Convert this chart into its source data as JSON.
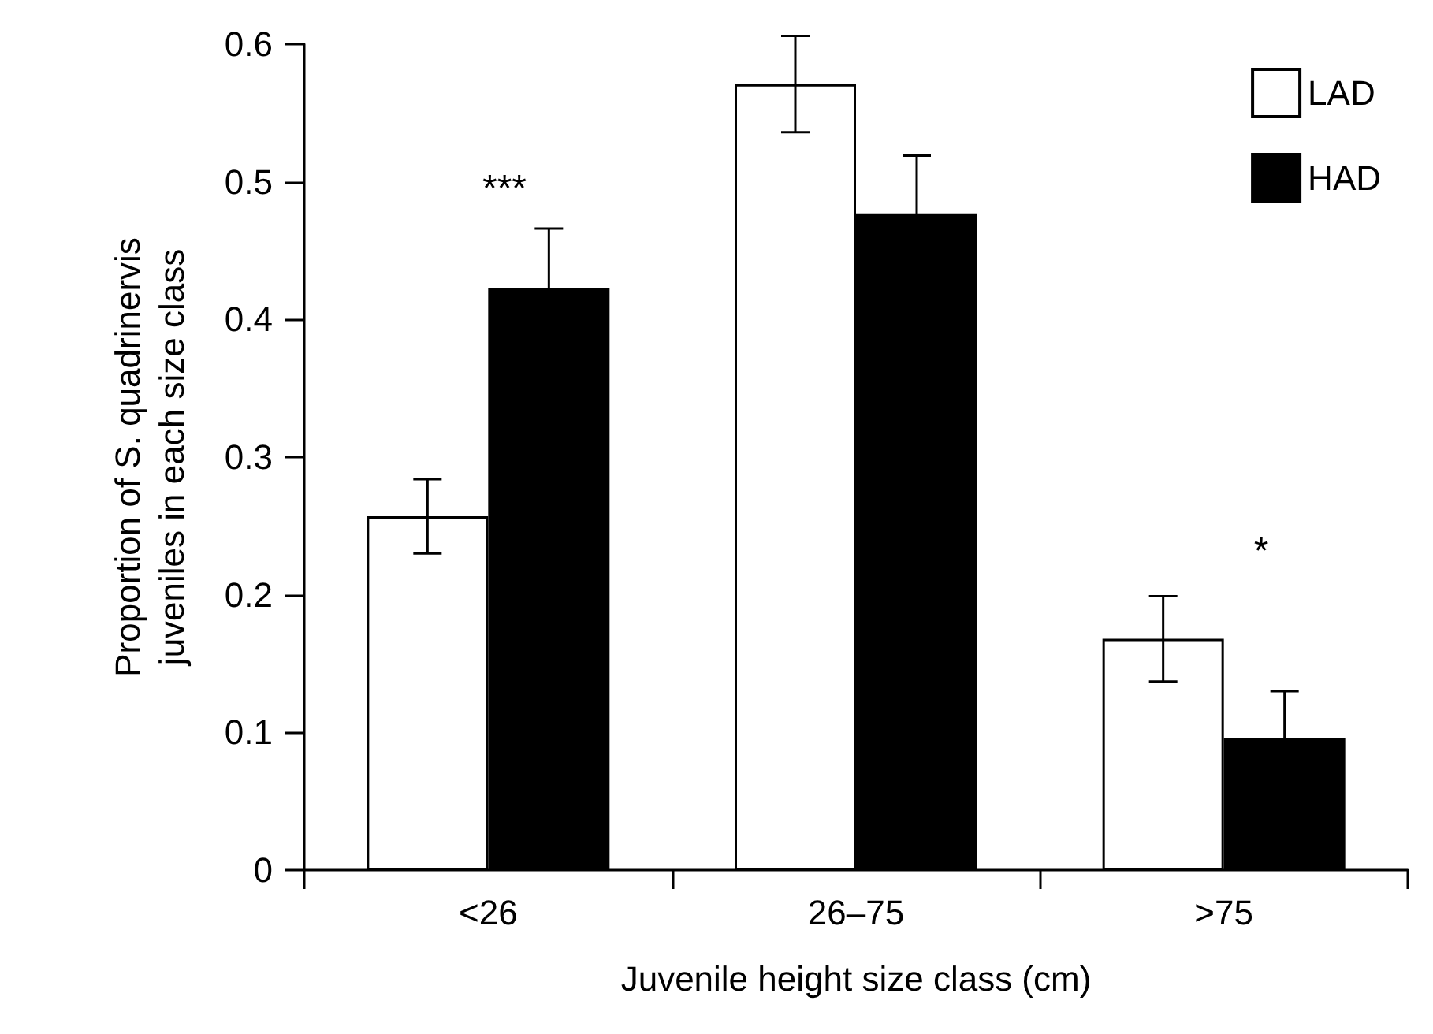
{
  "chart_data": {
    "type": "bar",
    "xlabel": "Juvenile height size class (cm)",
    "ylabel": "Proportion of S. quadrinervis\njuveniles in each size class",
    "categories": [
      "<26",
      "26–75",
      ">75"
    ],
    "series": [
      {
        "name": "LAD",
        "color": "#ffffff",
        "values": [
          0.257,
          0.571,
          0.168
        ],
        "errors": [
          0.027,
          0.035,
          0.031
        ]
      },
      {
        "name": "HAD",
        "color": "#000000",
        "values": [
          0.423,
          0.477,
          0.096
        ],
        "errors": [
          0.043,
          0.042,
          0.034
        ]
      }
    ],
    "ylim": [
      0,
      0.6
    ],
    "yticks": [
      0,
      0.1,
      0.2,
      0.3,
      0.4,
      0.5,
      0.6
    ],
    "grid": false,
    "legend": "top right",
    "annotations": [
      "***",
      "*"
    ]
  }
}
